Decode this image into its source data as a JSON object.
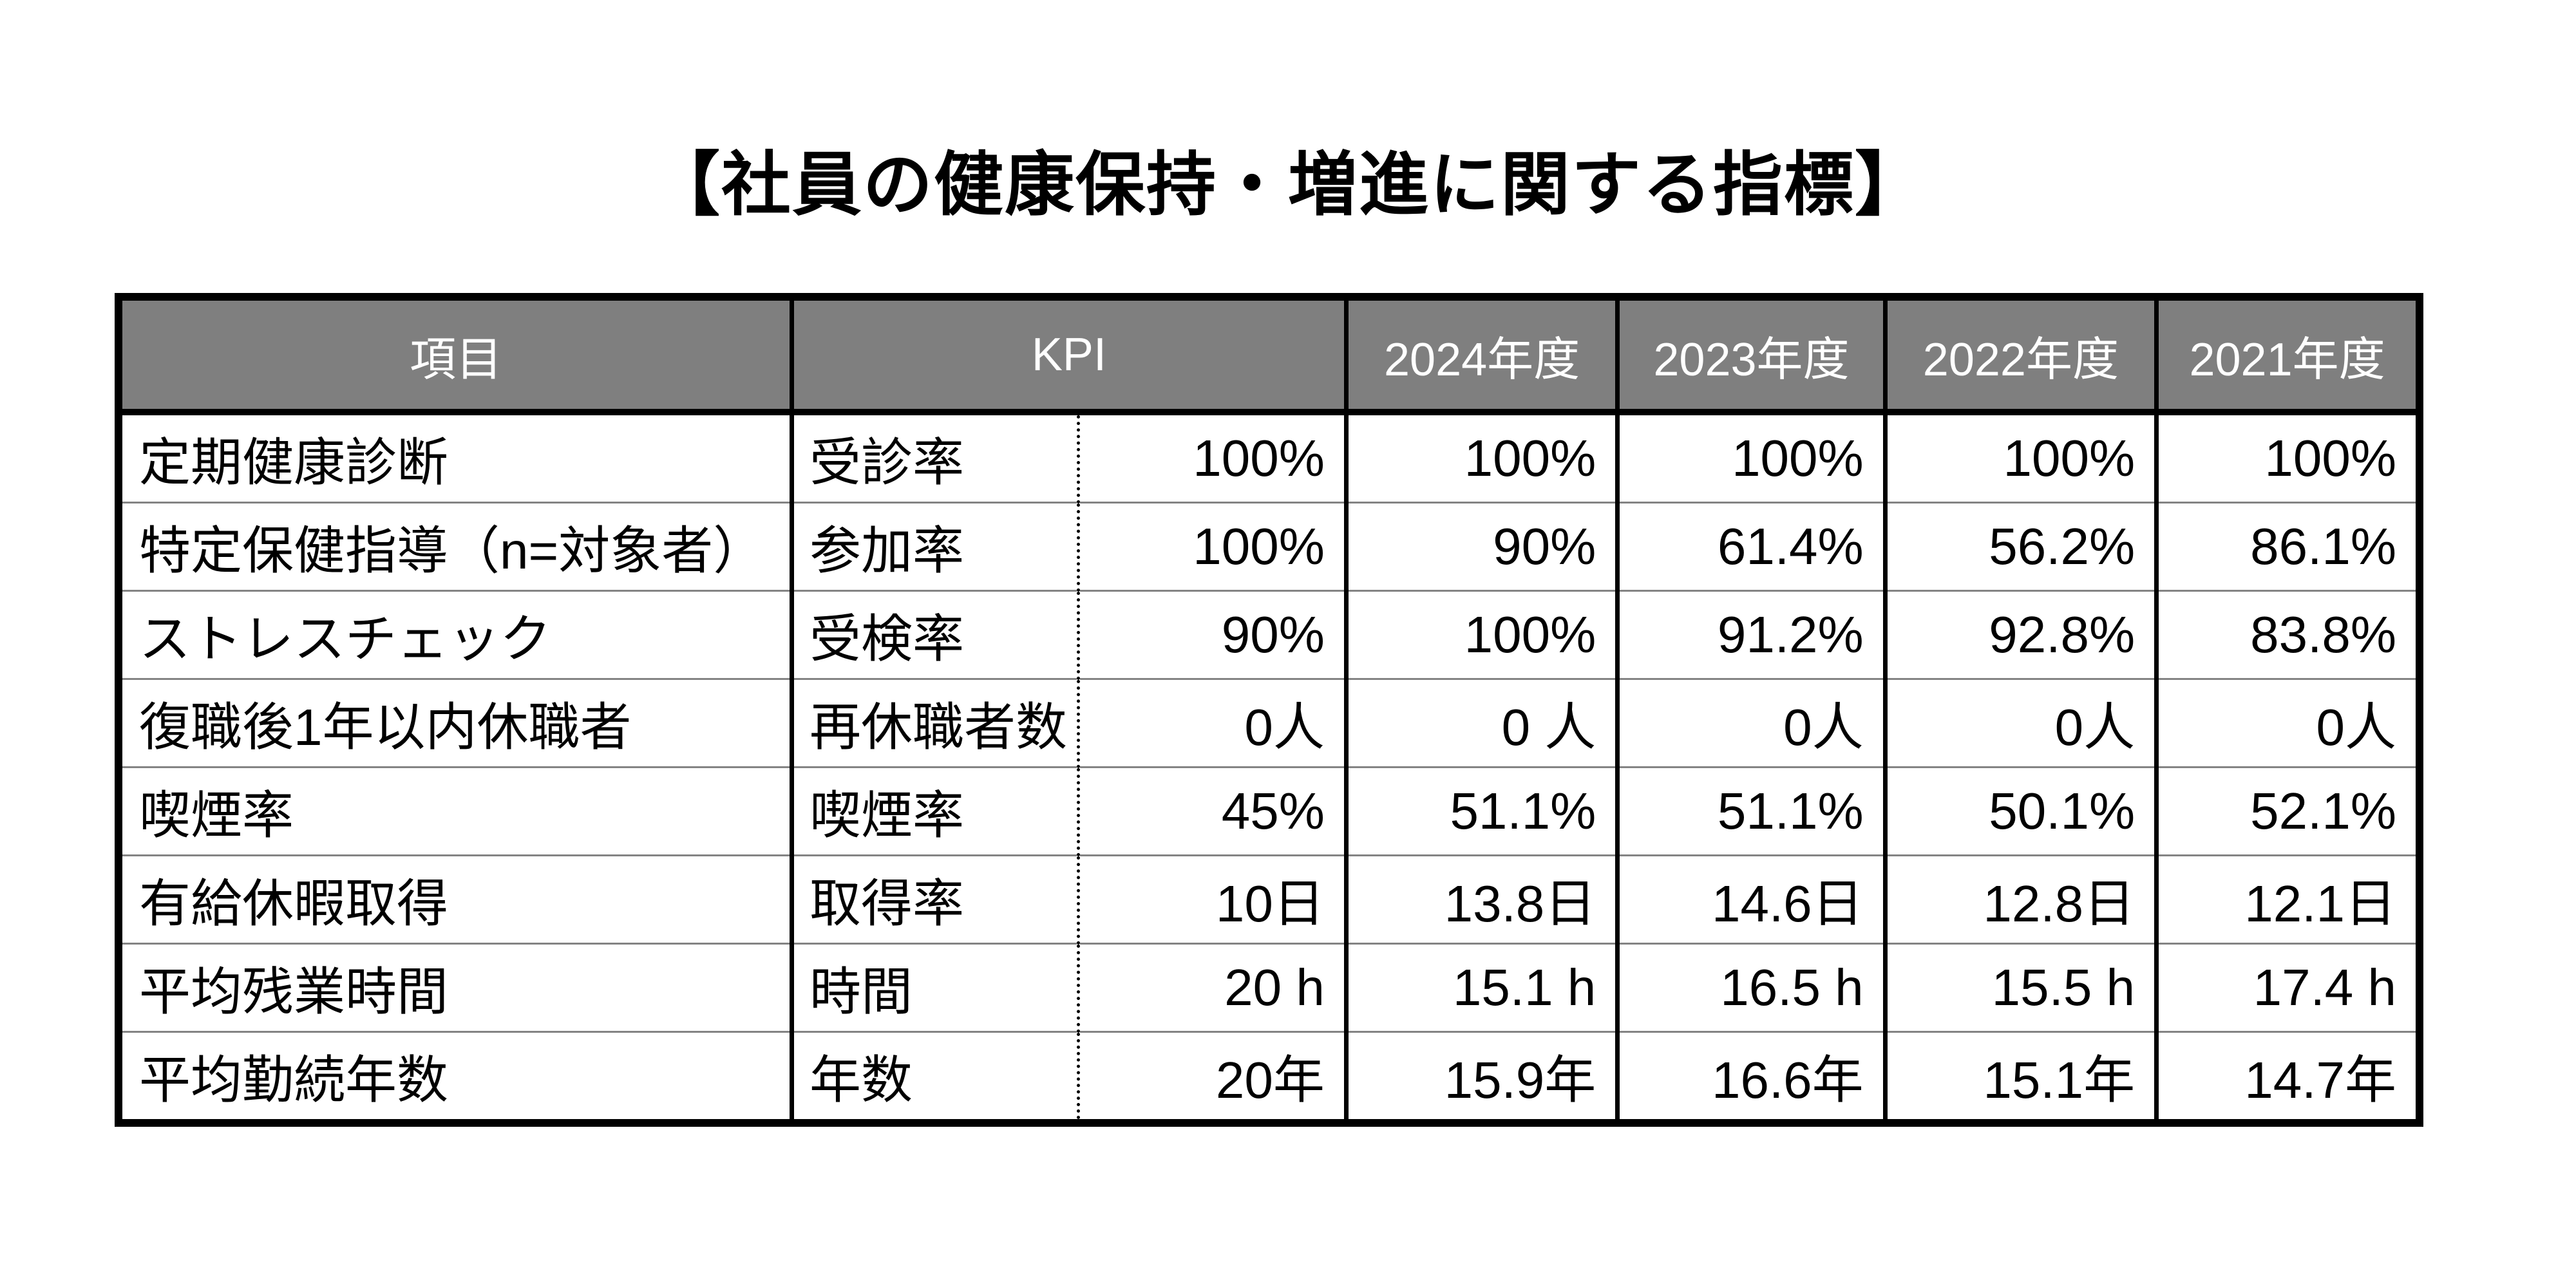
{
  "title": "【社員の健康保持・増進に関する指標】",
  "table": {
    "headers": {
      "item": "項目",
      "kpi": "KPI",
      "years": [
        "2024年度",
        "2023年度",
        "2022年度",
        "2021年度"
      ]
    },
    "rows": [
      {
        "item": "定期健康診断",
        "kpi": "受診率",
        "target": "100%",
        "values": [
          "100%",
          "100%",
          "100%",
          "100%"
        ]
      },
      {
        "item": "特定保健指導（n=対象者）",
        "kpi": "参加率",
        "target": "100%",
        "values": [
          "90%",
          "61.4%",
          "56.2%",
          "86.1%"
        ]
      },
      {
        "item": "ストレスチェック",
        "kpi": "受検率",
        "target": "90%",
        "values": [
          "100%",
          "91.2%",
          "92.8%",
          "83.8%"
        ]
      },
      {
        "item": "復職後1年以内休職者",
        "kpi": "再休職者数",
        "target": "0人",
        "values": [
          "0 人",
          "0人",
          "0人",
          "0人"
        ]
      },
      {
        "item": "喫煙率",
        "kpi": "喫煙率",
        "target": "45%",
        "values": [
          "51.1%",
          "51.1%",
          "50.1%",
          "52.1%"
        ]
      },
      {
        "item": "有給休暇取得",
        "kpi": "取得率",
        "target": "10日",
        "values": [
          "13.8日",
          "14.6日",
          "12.8日",
          "12.1日"
        ]
      },
      {
        "item": "平均残業時間",
        "kpi": "時間",
        "target": "20 h",
        "values": [
          "15.1 h",
          "16.5 h",
          "15.5 h",
          "17.4 h"
        ]
      },
      {
        "item": "平均勤続年数",
        "kpi": "年数",
        "target": "20年",
        "values": [
          "15.9年",
          "16.6年",
          "15.1年",
          "14.7年"
        ]
      }
    ],
    "colors": {
      "header_bg": "#7f7f7f",
      "header_text": "#ffffff",
      "border": "#000000",
      "row_divider": "#848484"
    }
  }
}
